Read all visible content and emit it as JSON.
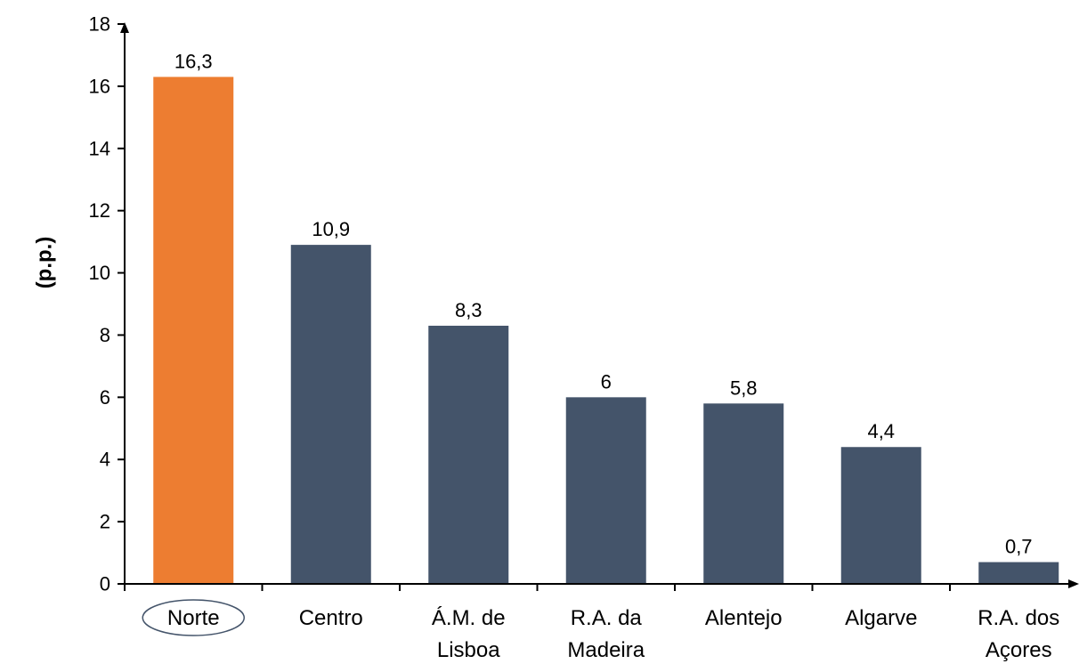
{
  "chart_data": {
    "type": "bar",
    "categories": [
      "Norte",
      "Centro",
      "Á.M. de Lisboa",
      "R.A. da Madeira",
      "Alentejo",
      "Algarve",
      "R.A. dos Açores"
    ],
    "category_lines": [
      [
        "Norte"
      ],
      [
        "Centro"
      ],
      [
        "Á.M. de",
        "Lisboa"
      ],
      [
        "R.A. da",
        "Madeira"
      ],
      [
        "Alentejo"
      ],
      [
        "Algarve"
      ],
      [
        "R.A. dos",
        "Açores"
      ]
    ],
    "values": [
      16.3,
      10.9,
      8.3,
      6,
      5.8,
      4.4,
      0.7
    ],
    "data_labels": [
      "16,3",
      "10,9",
      "8,3",
      "6",
      "5,8",
      "4,4",
      "0,7"
    ],
    "title": "",
    "xlabel": "",
    "ylabel": "(p.p.)",
    "ylim": [
      0,
      18
    ],
    "yticks": [
      0,
      2,
      4,
      6,
      8,
      10,
      12,
      14,
      16,
      18
    ],
    "grid": false,
    "legend": "none",
    "highlight_index": 0,
    "colors": {
      "bar": "#44546a",
      "highlight": "#ed7d31",
      "axis": "#000000"
    }
  }
}
